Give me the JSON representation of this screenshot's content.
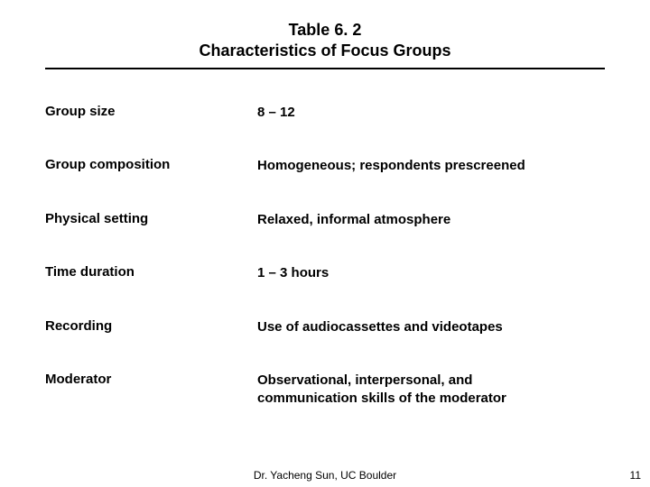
{
  "title": {
    "line1": "Table 6. 2",
    "line2": "Characteristics of Focus Groups"
  },
  "rows": [
    {
      "label": "Group size",
      "value": "8 – 12"
    },
    {
      "label": "Group composition",
      "value": "Homogeneous; respondents prescreened"
    },
    {
      "label": "Physical setting",
      "value": "Relaxed, informal atmosphere"
    },
    {
      "label": "Time duration",
      "value": "1 – 3 hours"
    },
    {
      "label": "Recording",
      "value": "Use of audiocassettes and videotapes"
    },
    {
      "label": "Moderator",
      "value": "Observational, interpersonal, and communication skills of the moderator"
    }
  ],
  "footer": "Dr. Yacheng Sun, UC Boulder",
  "page_num": "11"
}
